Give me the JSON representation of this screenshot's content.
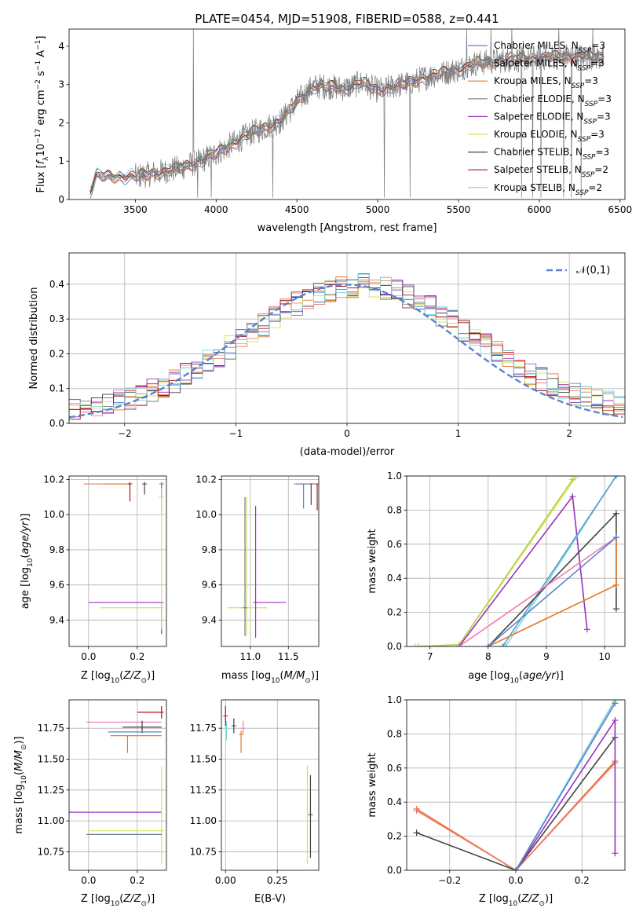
{
  "title": "PLATE=0454, MJD=51908, FIBERID=0588, z=0.441",
  "model_colors": [
    "#5b82d0",
    "#f07b6e",
    "#e07a2a",
    "#6e7f8c",
    "#9b30c0",
    "#d8e060",
    "#444444",
    "#b0141a",
    "#80d8e0"
  ],
  "legend_models": [
    {
      "base": "Chabrier MILES, N",
      "sub": "SSP",
      "tail": "=3",
      "color": "#5b82d0"
    },
    {
      "base": "Salpeter MILES, N",
      "sub": "SSP",
      "tail": "=3",
      "color": "#f07b6e"
    },
    {
      "base": "Kroupa MILES, N",
      "sub": "SSP",
      "tail": "=3",
      "color": "#e07a2a"
    },
    {
      "base": "Chabrier ELODIE, N",
      "sub": "SSP",
      "tail": "=3",
      "color": "#6e7f8c"
    },
    {
      "base": "Salpeter ELODIE, N",
      "sub": "SSP",
      "tail": "=3",
      "color": "#9b30c0"
    },
    {
      "base": "Kroupa ELODIE, N",
      "sub": "SSP",
      "tail": "=3",
      "color": "#d8e060"
    },
    {
      "base": "Chabrier STELIB, N",
      "sub": "SSP",
      "tail": "=3",
      "color": "#444444"
    },
    {
      "base": "Salpeter STELIB, N",
      "sub": "SSP",
      "tail": "=2",
      "color": "#b0141a"
    },
    {
      "base": "Kroupa STELIB, N",
      "sub": "SSP",
      "tail": "=2",
      "color": "#80d8e0"
    }
  ],
  "chart_data": [
    {
      "id": "spectrum",
      "type": "line",
      "title": "PLATE=0454, MJD=51908, FIBERID=0588, z=0.441",
      "xlabel": "wavelength [Angstrom, rest frame]",
      "ylabel": "Flux [f_λ 10^-17 erg cm^-2 s^-1 A^-1]",
      "xlim": [
        3090,
        6530
      ],
      "ylim": [
        0,
        4.45
      ],
      "xticks": [
        3500,
        4000,
        4500,
        5000,
        5500,
        6000,
        6500
      ],
      "yticks": [
        0,
        1,
        2,
        3,
        4
      ],
      "continuum": {
        "x": [
          3220,
          3260,
          3350,
          3500,
          3700,
          3800,
          3900,
          4000,
          4200,
          4400,
          4500,
          4600,
          4700,
          4800,
          4900,
          5000,
          5100,
          5200,
          5300,
          5400,
          5500,
          5600,
          5800,
          6000,
          6200,
          6400
        ],
        "y": [
          0.2,
          0.62,
          0.6,
          0.6,
          0.75,
          0.85,
          1.0,
          1.2,
          1.7,
          2.05,
          2.55,
          2.95,
          2.95,
          2.9,
          3.05,
          2.85,
          2.95,
          3.05,
          3.2,
          3.3,
          3.4,
          3.55,
          3.65,
          3.7,
          3.75,
          3.7
        ]
      },
      "model_sources": [
        "Chabrier MILES",
        "Salpeter MILES",
        "Kroupa MILES",
        "Chabrier ELODIE",
        "Salpeter ELODIE",
        "Kroupa ELODIE",
        "Chabrier STELIB",
        "Salpeter STELIB",
        "Kroupa STELIB"
      ]
    },
    {
      "id": "residual-histogram",
      "type": "histogram",
      "xlabel": "(data-model)/error",
      "ylabel": "Normed distribution",
      "xlim": [
        -2.5,
        2.5
      ],
      "ylim": [
        0,
        0.49
      ],
      "xticks": [
        -2,
        -1,
        0,
        1,
        2
      ],
      "yticks": [
        0.0,
        0.1,
        0.2,
        0.3,
        0.4
      ],
      "reference_curve": {
        "name": "𝒩(0,1)",
        "mean": 0,
        "sigma": 1
      },
      "bin_width": 0.1
    },
    {
      "id": "age-vs-Z",
      "type": "errorbar",
      "xlabel": "Z [log10(Z/Z☉)]",
      "ylabel": "age  [log10(age/yr)]",
      "xlim": [
        -0.08,
        0.32
      ],
      "ylim": [
        9.25,
        10.22
      ],
      "xticks": [
        0.0,
        0.2
      ],
      "yticks": [
        9.4,
        9.6,
        9.8,
        10.0,
        10.2
      ],
      "points": [
        {
          "x": 0.0,
          "y": 10.175,
          "xerr": [
            0.02,
            0.15
          ],
          "color": "#f07b6e"
        },
        {
          "x": 0.14,
          "y": 10.175,
          "xerr": [
            0.08,
            0.03
          ],
          "color": "#e07a2a"
        },
        {
          "x": 0.17,
          "y": 10.175,
          "yerr": [
            0.1,
            0.01
          ],
          "color": "#b0141a"
        },
        {
          "x": 0.23,
          "y": 10.175,
          "yerr": [
            0.06,
            0.01
          ],
          "color": "#444444"
        },
        {
          "x": 0.3,
          "y": 10.175,
          "yerr": [
            0.14,
            0.01
          ],
          "color": "#6e7f8c"
        },
        {
          "x": 0.3,
          "y": 10.1,
          "yerr": [
            0.1,
            0.05
          ],
          "color": "#80d8e0"
        },
        {
          "x": 0.3,
          "y": 9.5,
          "xerr": [
            0.3,
            0.0
          ],
          "yerr": [
            0.18,
            0.0
          ],
          "color": "#9b30c0"
        },
        {
          "x": 0.3,
          "y": 9.47,
          "xerr": [
            0.25,
            0.0
          ],
          "color": "#d8e060"
        },
        {
          "x": 0.3,
          "y": 10.1,
          "yerr": [
            0.75,
            0.0
          ],
          "color": "#d8e060"
        }
      ]
    },
    {
      "id": "age-vs-mass",
      "type": "errorbar",
      "xlabel": "mass [log10(M/M☉)]",
      "ylabel": "",
      "xlim": [
        10.62,
        11.9
      ],
      "ylim": [
        9.25,
        10.22
      ],
      "xticks": [
        11.0,
        11.5
      ],
      "yticks": [
        9.4,
        9.6,
        9.8,
        10.0,
        10.2
      ],
      "points": [
        {
          "x": 11.75,
          "y": 10.175,
          "xerr": [
            0.18,
            0.1
          ],
          "color": "#f07b6e"
        },
        {
          "x": 11.7,
          "y": 10.175,
          "xerr": [
            0.1,
            0.05
          ],
          "yerr": [
            0.14,
            0.0
          ],
          "color": "#5b82d0"
        },
        {
          "x": 11.88,
          "y": 10.175,
          "yerr": [
            0.15,
            0.0
          ],
          "color": "#b0141a"
        },
        {
          "x": 11.8,
          "y": 10.175,
          "yerr": [
            0.12,
            0.0
          ],
          "color": "#444444"
        },
        {
          "x": 10.95,
          "y": 9.47,
          "xerr": [
            0.25,
            0.27
          ],
          "yerr": [
            0.16,
            0.63
          ],
          "color": "#d8e060"
        },
        {
          "x": 11.07,
          "y": 9.5,
          "xerr": [
            0.03,
            0.4
          ],
          "yerr": [
            0.2,
            0.55
          ],
          "color": "#9b30c0"
        },
        {
          "x": 10.93,
          "y": 9.47,
          "yerr": [
            0.16,
            0.63
          ],
          "color": "#6e7f8c"
        }
      ]
    },
    {
      "id": "mass-weight-vs-age",
      "type": "line",
      "xlabel": "age  [log10(age/yr)]",
      "ylabel": "mass weight",
      "xlim": [
        6.6,
        10.35
      ],
      "ylim": [
        0.0,
        1.0
      ],
      "xticks": [
        7,
        8,
        9,
        10
      ],
      "yticks": [
        0.0,
        0.2,
        0.4,
        0.6,
        0.8,
        1.0
      ],
      "series": [
        {
          "color": "#d8e060",
          "x": [
            6.75,
            7.5,
            9.5
          ],
          "y": [
            0.0,
            0.01,
            0.99
          ]
        },
        {
          "color": "#b5d646",
          "x": [
            6.8,
            7.5,
            9.45
          ],
          "y": [
            0.0,
            0.01,
            0.98
          ]
        },
        {
          "color": "#9b30c0",
          "x": [
            7.5,
            9.45,
            9.7
          ],
          "y": [
            0.0,
            0.88,
            0.1
          ]
        },
        {
          "color": "#80d8e0",
          "x": [
            8.3,
            10.2
          ],
          "y": [
            0.0,
            1.0
          ]
        },
        {
          "color": "#5b9ecf",
          "x": [
            8.25,
            10.2
          ],
          "y": [
            0.0,
            1.0
          ]
        },
        {
          "color": "#444444",
          "x": [
            8.0,
            10.2,
            10.2
          ],
          "y": [
            0.0,
            0.78,
            0.22
          ]
        },
        {
          "color": "#e07a2a",
          "x": [
            8.0,
            10.2,
            10.2
          ],
          "y": [
            0.0,
            0.36,
            0.64
          ]
        },
        {
          "color": "#f07bb0",
          "x": [
            7.5,
            10.2
          ],
          "y": [
            0.0,
            0.64
          ]
        },
        {
          "color": "#5b82d0",
          "x": [
            8.0,
            10.2
          ],
          "y": [
            0.0,
            0.64
          ]
        }
      ]
    },
    {
      "id": "mass-vs-Z",
      "type": "errorbar",
      "xlabel": "Z [log10(Z/Z☉)]",
      "ylabel": "mass [log10(M/M☉)]",
      "xlim": [
        -0.08,
        0.32
      ],
      "ylim": [
        10.6,
        11.98
      ],
      "xticks": [
        0.0,
        0.2
      ],
      "yticks": [
        10.75,
        11.0,
        11.25,
        11.5,
        11.75
      ],
      "points": [
        {
          "x": 0.3,
          "y": 11.88,
          "xerr": [
            0.1,
            0.0
          ],
          "yerr": [
            0.05,
            0.05
          ],
          "color": "#b0141a"
        },
        {
          "x": 0.0,
          "y": 11.8,
          "xerr": [
            0.0,
            0.3
          ],
          "color": "#f07bb0"
        },
        {
          "x": 0.22,
          "y": 11.76,
          "xerr": [
            0.08,
            0.08
          ],
          "yerr": [
            0.05,
            0.05
          ],
          "color": "#444444"
        },
        {
          "x": 0.18,
          "y": 11.72,
          "xerr": [
            0.1,
            0.12
          ],
          "color": "#5b82d0"
        },
        {
          "x": 0.16,
          "y": 11.69,
          "xerr": [
            0.07,
            0.14
          ],
          "yerr": [
            0.14,
            0.0
          ],
          "color": "#e07a2a"
        },
        {
          "x": -0.08,
          "y": 11.07,
          "xerr": [
            0.0,
            0.38
          ],
          "color": "#9b30c0"
        },
        {
          "x": 0.3,
          "y": 10.92,
          "xerr": [
            0.3,
            0.0
          ],
          "yerr": [
            0.27,
            0.52
          ],
          "color": "#d8e060"
        },
        {
          "x": 0.0,
          "y": 10.89,
          "xerr": [
            0.0,
            0.3
          ],
          "color": "#6e7f8c"
        }
      ]
    },
    {
      "id": "mass-vs-EBV",
      "type": "errorbar",
      "xlabel": "E(B-V)",
      "ylabel": "",
      "xlim": [
        -0.02,
        0.45
      ],
      "ylim": [
        10.6,
        11.98
      ],
      "xticks": [
        0.0,
        0.25
      ],
      "yticks": [
        10.75,
        11.0,
        11.25,
        11.5,
        11.75
      ],
      "points": [
        {
          "x": 0.0,
          "y": 11.85,
          "yerr": [
            0.08,
            0.08
          ],
          "color": "#b0141a"
        },
        {
          "x": 0.005,
          "y": 11.75,
          "yerr": [
            0.1,
            0.06
          ],
          "color": "#80d8e0"
        },
        {
          "x": 0.04,
          "y": 11.77,
          "yerr": [
            0.06,
            0.06
          ],
          "color": "#444444"
        },
        {
          "x": 0.075,
          "y": 11.7,
          "yerr": [
            0.15,
            0.03
          ],
          "color": "#e07a2a"
        },
        {
          "x": 0.085,
          "y": 11.75,
          "yerr": [
            0.05,
            0.06
          ],
          "color": "#f07bb0"
        },
        {
          "x": 0.395,
          "y": 11.0,
          "yerr": [
            0.35,
            0.45
          ],
          "color": "#d8e060"
        },
        {
          "x": 0.41,
          "y": 11.05,
          "yerr": [
            0.35,
            0.32
          ],
          "color": "#444444"
        }
      ]
    },
    {
      "id": "mass-weight-vs-Z",
      "type": "line",
      "xlabel": "Z [log10(Z/Z☉)]",
      "ylabel": "mass weight",
      "xlim": [
        -0.33,
        0.33
      ],
      "ylim": [
        0.0,
        1.0
      ],
      "xticks": [
        -0.2,
        0.0,
        0.2
      ],
      "yticks": [
        0.0,
        0.2,
        0.4,
        0.6,
        0.8,
        1.0
      ],
      "series": [
        {
          "color": "#e07a2a",
          "x": [
            -0.3,
            0.0,
            0.3
          ],
          "y": [
            0.36,
            0.0,
            0.64
          ]
        },
        {
          "color": "#f07b6e",
          "x": [
            -0.3,
            0.0,
            0.3
          ],
          "y": [
            0.35,
            0.0,
            0.63
          ]
        },
        {
          "color": "#444444",
          "x": [
            -0.3,
            0.0,
            0.3
          ],
          "y": [
            0.22,
            0.0,
            0.78
          ]
        },
        {
          "color": "#9b30c0",
          "x": [
            0.0,
            0.3,
            0.3
          ],
          "y": [
            0.0,
            0.88,
            0.1
          ]
        },
        {
          "color": "#d8e060",
          "x": [
            0.0,
            0.3
          ],
          "y": [
            0.0,
            0.99
          ]
        },
        {
          "color": "#80d8e0",
          "x": [
            0.0,
            0.3
          ],
          "y": [
            0.0,
            1.0
          ]
        },
        {
          "color": "#5b82d0",
          "x": [
            0.0,
            0.3
          ],
          "y": [
            0.0,
            0.98
          ]
        }
      ]
    }
  ]
}
